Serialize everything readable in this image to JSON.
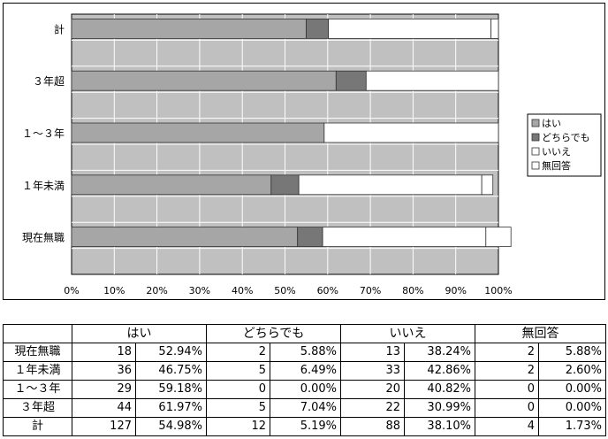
{
  "chart_data": {
    "type": "bar",
    "orientation": "horizontal",
    "stacked": true,
    "categories": [
      "計",
      "３年超",
      "１～３年",
      "１年未満",
      "現在無職"
    ],
    "series": [
      {
        "name": "はい",
        "color": "#a6a6a6",
        "values": [
          54.98,
          61.97,
          59.18,
          46.75,
          52.94
        ]
      },
      {
        "name": "どちらでも",
        "color": "#777777",
        "values": [
          5.19,
          7.04,
          0.0,
          6.49,
          5.88
        ]
      },
      {
        "name": "いいえ",
        "color": "#ffffff",
        "values": [
          38.1,
          30.99,
          40.82,
          42.86,
          38.24
        ]
      },
      {
        "name": "無回答",
        "color": "#ffffff",
        "values": [
          1.73,
          0.0,
          0.0,
          2.6,
          5.88
        ]
      }
    ],
    "xlim": [
      0,
      100
    ],
    "x_ticks": [
      "0%",
      "10%",
      "20%",
      "30%",
      "40%",
      "50%",
      "60%",
      "70%",
      "80%",
      "90%",
      "100%"
    ],
    "grid": true,
    "legend_position": "right",
    "plot_background": "#c0c0c0"
  },
  "table": {
    "headers": [
      "はい",
      "どちらでも",
      "いいえ",
      "無回答"
    ],
    "rows": [
      {
        "label": "現在無職",
        "cells": [
          "18",
          "52.94%",
          "2",
          "5.88%",
          "13",
          "38.24%",
          "2",
          "5.88%"
        ]
      },
      {
        "label": "１年未満",
        "cells": [
          "36",
          "46.75%",
          "5",
          "6.49%",
          "33",
          "42.86%",
          "2",
          "2.60%"
        ]
      },
      {
        "label": "１～３年",
        "cells": [
          "29",
          "59.18%",
          "0",
          "0.00%",
          "20",
          "40.82%",
          "0",
          "0.00%"
        ]
      },
      {
        "label": "３年超",
        "cells": [
          "44",
          "61.97%",
          "5",
          "7.04%",
          "22",
          "30.99%",
          "0",
          "0.00%"
        ]
      },
      {
        "label": "計",
        "cells": [
          "127",
          "54.98%",
          "12",
          "5.19%",
          "88",
          "38.10%",
          "4",
          "1.73%"
        ]
      }
    ]
  }
}
